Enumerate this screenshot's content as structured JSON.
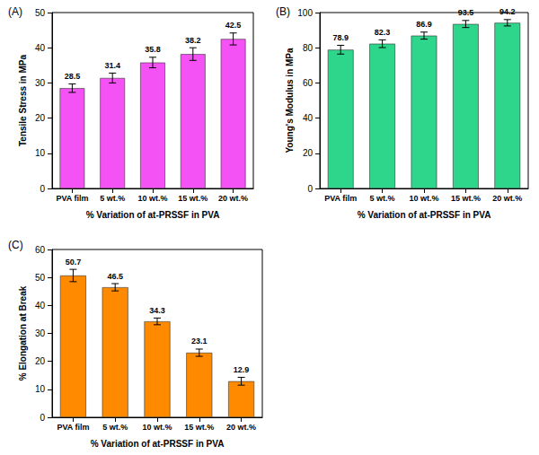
{
  "chart_data": [
    {
      "type": "bar",
      "title": "(A)",
      "categories": [
        "PVA film",
        "5 wt.%",
        "10 wt.%",
        "15 wt.%",
        "20 wt.%"
      ],
      "values": [
        28.5,
        31.4,
        35.8,
        38.2,
        42.5
      ],
      "errors": [
        1.2,
        1.4,
        1.5,
        1.8,
        1.7
      ],
      "color": "#f552f5",
      "x_label": "% Variation of at-PRSSF in PVA",
      "y_label": "Tensile Stress in MPa",
      "ylim": [
        0,
        50
      ],
      "yticks": [
        0,
        10,
        20,
        30,
        40,
        50
      ],
      "grid": false,
      "data_labels": true
    },
    {
      "type": "bar",
      "title": "(B)",
      "categories": [
        "PVA film",
        "5 wt.%",
        "10 wt.%",
        "15 wt.%",
        "20 wt.%"
      ],
      "values": [
        78.9,
        82.3,
        86.9,
        93.5,
        94.2
      ],
      "errors": [
        2.5,
        2.2,
        2.0,
        2.0,
        1.8
      ],
      "color": "#2ed68c",
      "x_label": "% Variation of at-PRSSF in PVA",
      "y_label": "Young's Modulus in MPa",
      "ylim": [
        0,
        100
      ],
      "yticks": [
        0,
        20,
        40,
        60,
        80,
        100
      ],
      "grid": false,
      "data_labels": true
    },
    {
      "type": "bar",
      "title": "(C)",
      "categories": [
        "PVA film",
        "5 wt.%",
        "10 wt.%",
        "15 wt.%",
        "20 wt.%"
      ],
      "values": [
        50.7,
        46.5,
        34.3,
        23.1,
        12.9
      ],
      "errors": [
        2.2,
        1.3,
        1.2,
        1.3,
        1.4
      ],
      "color": "#ff8a00",
      "x_label": "% Variation of at-PRSSF in PVA",
      "y_label": "% Elongation at Break",
      "ylim": [
        0,
        60
      ],
      "yticks": [
        0,
        10,
        20,
        30,
        40,
        50,
        60
      ],
      "grid": false,
      "data_labels": true
    }
  ]
}
